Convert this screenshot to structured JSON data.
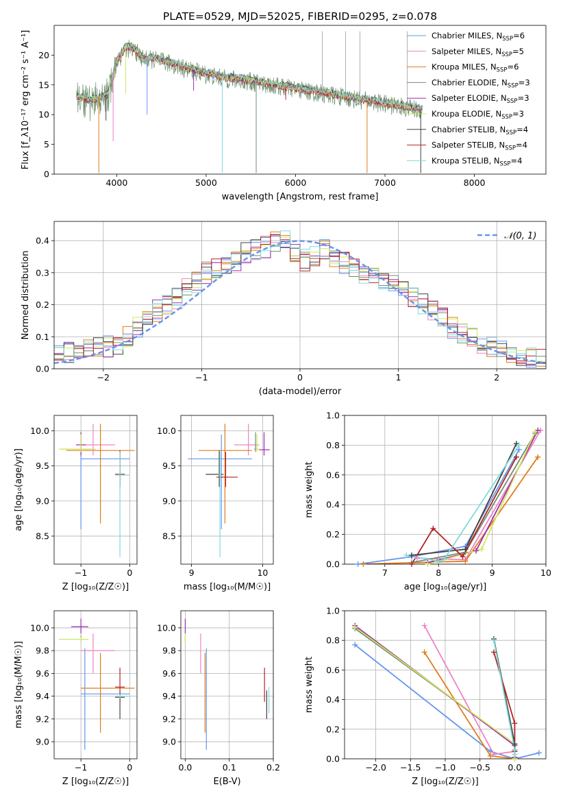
{
  "figure_title": "PLATE=0529, MJD=52025, FIBERID=0295, z=0.078",
  "colors": {
    "Chabrier MILES": "#6495ed",
    "Salpeter MILES": "#ee82c4",
    "Kroupa MILES": "#e07b1a",
    "Chabrier ELODIE": "#6f8f6f",
    "Salpeter ELODIE": "#9b2fae",
    "Kroupa ELODIE": "#d2e85a",
    "Chabrier STELIB": "#404040",
    "Salpeter STELIB": "#b22222",
    "Kroupa STELIB": "#7fdadc"
  },
  "chart_data": [
    {
      "type": "line",
      "xlabel": "wavelength [Angstrom, rest frame]",
      "ylabel": "Flux [f_λ10⁻¹⁷ erg cm⁻² s⁻¹ A⁻¹]",
      "xlim": [
        3300,
        8800
      ],
      "ylim": [
        0,
        25
      ],
      "xticks": [
        4000,
        5000,
        6000,
        7000,
        8000
      ],
      "yticks": [
        0,
        5,
        10,
        15,
        20
      ],
      "legend_position": "top-right",
      "legend": [
        {
          "name": "Chabrier MILES",
          "nssp": "6"
        },
        {
          "name": "Salpeter MILES",
          "nssp": "5"
        },
        {
          "name": "Kroupa MILES",
          "nssp": "6"
        },
        {
          "name": "Chabrier ELODIE",
          "nssp": "3"
        },
        {
          "name": "Salpeter ELODIE",
          "nssp": "3"
        },
        {
          "name": "Kroupa ELODIE",
          "nssp": "3"
        },
        {
          "name": "Chabrier STELIB",
          "nssp": "4"
        },
        {
          "name": "Salpeter STELIB",
          "nssp": "4"
        },
        {
          "name": "Kroupa STELIB",
          "nssp": "4"
        }
      ],
      "continuum": {
        "x": [
          3550,
          3700,
          3800,
          3900,
          4000,
          4100,
          4200,
          4300,
          4400,
          4600,
          4800,
          5000,
          5200,
          5400,
          5600,
          5800,
          6000,
          6200,
          6400,
          6600,
          6800,
          7000,
          7200,
          7400
        ],
        "y": [
          13.0,
          12.5,
          12.8,
          13.5,
          19.0,
          21.5,
          21.0,
          19.5,
          19.5,
          18.8,
          17.8,
          17.0,
          16.3,
          16.0,
          15.5,
          15.0,
          14.5,
          14.0,
          13.5,
          13.0,
          12.5,
          12.0,
          11.5,
          11.0
        ]
      },
      "dips": [
        {
          "x": 3800,
          "y": 0.2
        },
        {
          "x": 3880,
          "y": 9.0
        },
        {
          "x": 3960,
          "y": 5.5
        },
        {
          "x": 4100,
          "y": 13.5
        },
        {
          "x": 4340,
          "y": 10.0
        },
        {
          "x": 4860,
          "y": 14.0
        },
        {
          "x": 5180,
          "y": 0.2
        },
        {
          "x": 5560,
          "y": 0.2
        },
        {
          "x": 5890,
          "y": 12.5
        },
        {
          "x": 6800,
          "y": 0.2
        },
        {
          "x": 7400,
          "y": 0.2
        }
      ],
      "spikes": [
        {
          "x": 6300,
          "y": 24.0
        },
        {
          "x": 6560,
          "y": 24.0
        },
        {
          "x": 6720,
          "y": 24.0
        },
        {
          "x": 7250,
          "y": 24.0
        }
      ]
    },
    {
      "type": "line",
      "xlabel": "(data-model)/error",
      "ylabel": "Normed distribution",
      "xlim": [
        -2.5,
        2.5
      ],
      "ylim": [
        0,
        0.46
      ],
      "xticks": [
        -2,
        -1,
        0,
        1,
        2
      ],
      "yticks": [
        0.0,
        0.1,
        0.2,
        0.3,
        0.4
      ],
      "grid": true,
      "legend_position": "top-right",
      "gaussian_label": "𝒩(0, 1)",
      "histogram_bin_edges": [
        -2.5,
        -2.4,
        -2.3,
        -2.2,
        -2.1,
        -2.0,
        -1.9,
        -1.8,
        -1.7,
        -1.6,
        -1.5,
        -1.4,
        -1.3,
        -1.2,
        -1.1,
        -1.0,
        -0.9,
        -0.8,
        -0.7,
        -0.6,
        -0.5,
        -0.4,
        -0.3,
        -0.2,
        -0.1,
        0.0,
        0.1,
        0.2,
        0.3,
        0.4,
        0.5,
        0.6,
        0.7,
        0.8,
        0.9,
        1.0,
        1.1,
        1.2,
        1.3,
        1.4,
        1.5,
        1.6,
        1.7,
        1.8,
        1.9,
        2.0,
        2.1,
        2.2,
        2.3,
        2.4,
        2.5
      ],
      "histogram_base": [
        0.04,
        0.05,
        0.06,
        0.07,
        0.07,
        0.07,
        0.08,
        0.1,
        0.13,
        0.15,
        0.18,
        0.2,
        0.22,
        0.25,
        0.27,
        0.3,
        0.31,
        0.33,
        0.34,
        0.36,
        0.37,
        0.38,
        0.4,
        0.41,
        0.36,
        0.34,
        0.35,
        0.37,
        0.35,
        0.33,
        0.31,
        0.3,
        0.29,
        0.27,
        0.26,
        0.24,
        0.22,
        0.2,
        0.18,
        0.16,
        0.13,
        0.11,
        0.1,
        0.08,
        0.07,
        0.06,
        0.05,
        0.04,
        0.03,
        0.03
      ]
    },
    {
      "type": "scatter",
      "xlabel": "Z [log₁₀(Z/Z☉)]",
      "ylabel": "age  [log₁₀(age/yr)]",
      "xlim": [
        -1.55,
        0.15
      ],
      "ylim": [
        8.1,
        10.22
      ],
      "xticks": [
        -1,
        0
      ],
      "yticks": [
        8.5,
        9.0,
        9.5,
        10.0
      ],
      "grid": true,
      "points": [
        {
          "series": "Chabrier MILES",
          "x": -1.0,
          "y": 9.6,
          "ex": [
            -1.0,
            0.0
          ],
          "ey": [
            8.6,
            9.95
          ]
        },
        {
          "series": "Salpeter MILES",
          "x": -0.75,
          "y": 9.8,
          "ex": [
            -1.0,
            -0.3
          ],
          "ey": [
            9.65,
            10.1
          ]
        },
        {
          "series": "Kroupa MILES",
          "x": -0.6,
          "y": 9.72,
          "ex": [
            -1.3,
            0.1
          ],
          "ey": [
            8.68,
            10.1
          ]
        },
        {
          "series": "Chabrier ELODIE",
          "x": -1.0,
          "y": 9.74,
          "ex": [
            -1.4,
            -0.7
          ],
          "ey": [
            9.7,
            9.98
          ]
        },
        {
          "series": "Salpeter ELODIE",
          "x": -1.0,
          "y": 9.8,
          "ex": [
            -1.1,
            -0.9
          ],
          "ey": [
            9.65,
            9.98
          ]
        },
        {
          "series": "Kroupa ELODIE",
          "x": -1.0,
          "y": 9.74,
          "ex": [
            -1.45,
            -0.7
          ],
          "ey": [
            9.7,
            9.95
          ]
        },
        {
          "series": "Chabrier STELIB",
          "x": -0.2,
          "y": 9.38,
          "ex": [
            -0.3,
            -0.1
          ],
          "ey": [
            9.2,
            9.72
          ]
        },
        {
          "series": "Salpeter STELIB",
          "x": -0.2,
          "y": 9.38,
          "ex": [
            -0.3,
            -0.1
          ],
          "ey": [
            9.2,
            9.7
          ]
        },
        {
          "series": "Kroupa STELIB",
          "x": -0.2,
          "y": 9.37,
          "ex": [
            -0.3,
            0.0
          ],
          "ey": [
            8.2,
            9.7
          ]
        }
      ]
    },
    {
      "type": "scatter",
      "xlabel": "mass [log₁₀(M/M☉)]",
      "ylabel": "",
      "xlim": [
        8.85,
        10.15
      ],
      "ylim": [
        8.1,
        10.22
      ],
      "xticks": [
        9,
        10
      ],
      "yticks": [
        8.5,
        9.0,
        9.5,
        10.0
      ],
      "grid": true,
      "points": [
        {
          "series": "Chabrier MILES",
          "x": 9.42,
          "y": 9.6,
          "ex": [
            8.95,
            9.85
          ],
          "ey": [
            8.6,
            9.95
          ]
        },
        {
          "series": "Salpeter MILES",
          "x": 9.8,
          "y": 9.8,
          "ex": [
            9.6,
            9.95
          ],
          "ey": [
            9.65,
            10.1
          ]
        },
        {
          "series": "Kroupa MILES",
          "x": 9.47,
          "y": 9.72,
          "ex": [
            9.1,
            9.85
          ],
          "ey": [
            8.68,
            10.1
          ]
        },
        {
          "series": "Chabrier ELODIE",
          "x": 9.9,
          "y": 9.74,
          "ex": [
            9.88,
            9.93
          ],
          "ey": [
            9.7,
            9.98
          ]
        },
        {
          "series": "Salpeter ELODIE",
          "x": 10.02,
          "y": 9.73,
          "ex": [
            9.95,
            10.1
          ],
          "ey": [
            9.65,
            9.98
          ]
        },
        {
          "series": "Kroupa ELODIE",
          "x": 9.92,
          "y": 9.74,
          "ex": [
            9.9,
            9.95
          ],
          "ey": [
            9.7,
            9.95
          ]
        },
        {
          "series": "Chabrier STELIB",
          "x": 9.39,
          "y": 9.38,
          "ex": [
            9.2,
            9.45
          ],
          "ey": [
            9.2,
            9.72
          ]
        },
        {
          "series": "Salpeter STELIB",
          "x": 9.48,
          "y": 9.34,
          "ex": [
            9.35,
            9.65
          ],
          "ey": [
            9.2,
            9.7
          ]
        },
        {
          "series": "Kroupa STELIB",
          "x": 9.4,
          "y": 9.38,
          "ex": [
            9.38,
            9.42
          ],
          "ey": [
            8.2,
            9.7
          ]
        }
      ]
    },
    {
      "type": "line",
      "xlabel": "age  [log₁₀(age/yr)]",
      "ylabel": "mass weight",
      "xlim": [
        6.25,
        10.0
      ],
      "ylim": [
        0,
        1.0
      ],
      "xticks": [
        7,
        8,
        9,
        10
      ],
      "yticks": [
        0.0,
        0.2,
        0.4,
        0.6,
        0.8,
        1.0
      ],
      "grid": true,
      "series": [
        {
          "name": "Chabrier MILES",
          "x": [
            6.5,
            7.5,
            8.5,
            9.5
          ],
          "y": [
            0.0,
            0.05,
            0.12,
            0.77
          ]
        },
        {
          "name": "Salpeter MILES",
          "x": [
            7.6,
            8.5,
            9.9
          ],
          "y": [
            0.04,
            0.03,
            0.9
          ]
        },
        {
          "name": "Kroupa MILES",
          "x": [
            6.6,
            8.5,
            9.85
          ],
          "y": [
            0.0,
            0.02,
            0.72
          ]
        },
        {
          "name": "Chabrier ELODIE",
          "x": [
            7.5,
            8.5,
            9.8
          ],
          "y": [
            0.01,
            0.08,
            0.88
          ]
        },
        {
          "name": "Salpeter ELODIE",
          "x": [
            7.8,
            8.7,
            9.85
          ],
          "y": [
            0.01,
            0.09,
            0.9
          ]
        },
        {
          "name": "Kroupa ELODIE",
          "x": [
            7.8,
            8.8,
            9.8
          ],
          "y": [
            0.0,
            0.1,
            0.89
          ]
        },
        {
          "name": "Chabrier STELIB",
          "x": [
            7.5,
            8.5,
            9.45
          ],
          "y": [
            0.06,
            0.1,
            0.81
          ]
        },
        {
          "name": "Salpeter STELIB",
          "x": [
            7.5,
            7.9,
            8.45,
            9.45
          ],
          "y": [
            0.0,
            0.24,
            0.05,
            0.72
          ]
        },
        {
          "name": "Kroupa STELIB",
          "x": [
            7.4,
            8.0,
            8.1,
            9.5
          ],
          "y": [
            0.06,
            0.02,
            0.03,
            0.8
          ]
        }
      ]
    },
    {
      "type": "scatter",
      "xlabel": "Z [log₁₀(Z/Z☉)]",
      "ylabel": "mass [log₁₀(M/M☉)]",
      "xlim": [
        -1.55,
        0.15
      ],
      "ylim": [
        8.85,
        10.15
      ],
      "xticks": [
        -1,
        0
      ],
      "yticks": [
        9.0,
        9.2,
        9.4,
        9.6,
        9.8,
        10.0
      ],
      "grid": true,
      "points": [
        {
          "series": "Chabrier MILES",
          "x": -0.92,
          "y": 9.42,
          "ex": [
            -1.0,
            0.0
          ],
          "ey": [
            8.93,
            9.82
          ]
        },
        {
          "series": "Salpeter MILES",
          "x": -0.75,
          "y": 9.8,
          "ex": [
            -1.0,
            -0.3
          ],
          "ey": [
            9.6,
            9.95
          ]
        },
        {
          "series": "Kroupa MILES",
          "x": -0.6,
          "y": 9.47,
          "ex": [
            -1.0,
            0.1
          ],
          "ey": [
            9.08,
            9.78
          ]
        },
        {
          "series": "Chabrier ELODIE",
          "x": -1.0,
          "y": 9.9,
          "ex": [
            -1.45,
            -0.85
          ],
          "ey": [
            9.88,
            9.93
          ]
        },
        {
          "series": "Salpeter ELODIE",
          "x": -1.0,
          "y": 10.01,
          "ex": [
            -1.2,
            -0.85
          ],
          "ey": [
            9.95,
            10.08
          ]
        },
        {
          "series": "Kroupa ELODIE",
          "x": -1.0,
          "y": 9.9,
          "ex": [
            -1.45,
            -0.85
          ],
          "ey": [
            9.88,
            9.92
          ]
        },
        {
          "series": "Chabrier STELIB",
          "x": -0.2,
          "y": 9.39,
          "ex": [
            -0.3,
            -0.1
          ],
          "ey": [
            9.2,
            9.45
          ]
        },
        {
          "series": "Salpeter STELIB",
          "x": -0.2,
          "y": 9.48,
          "ex": [
            -0.3,
            -0.1
          ],
          "ey": [
            9.35,
            9.65
          ]
        },
        {
          "series": "Kroupa STELIB",
          "x": -0.2,
          "y": 9.4,
          "ex": [
            -0.3,
            0.0
          ],
          "ey": [
            9.38,
            9.42
          ]
        }
      ]
    },
    {
      "type": "scatter",
      "xlabel": "E(B-V)",
      "ylabel": "",
      "xlim": [
        -0.01,
        0.2
      ],
      "ylim": [
        8.85,
        10.15
      ],
      "xticks": [
        0.0,
        0.1,
        0.2
      ],
      "yticks": [
        9.0,
        9.2,
        9.4,
        9.6,
        9.8,
        10.0
      ],
      "grid": true,
      "points": [
        {
          "series": "Chabrier MILES",
          "x": 0.048,
          "y": 9.42,
          "ey": [
            8.93,
            9.82
          ]
        },
        {
          "series": "Salpeter MILES",
          "x": 0.035,
          "y": 9.8,
          "ey": [
            9.6,
            9.95
          ]
        },
        {
          "series": "Kroupa MILES",
          "x": 0.045,
          "y": 9.47,
          "ey": [
            9.08,
            9.78
          ]
        },
        {
          "series": "Chabrier ELODIE",
          "x": 0.0,
          "y": 9.9,
          "ey": [
            9.88,
            9.93
          ]
        },
        {
          "series": "Salpeter ELODIE",
          "x": 0.0,
          "y": 10.01,
          "ey": [
            9.95,
            10.08
          ]
        },
        {
          "series": "Kroupa ELODIE",
          "x": 0.0,
          "y": 9.9,
          "ey": [
            9.85,
            9.95
          ]
        },
        {
          "series": "Chabrier STELIB",
          "x": 0.185,
          "y": 9.39,
          "ey": [
            9.2,
            9.45
          ]
        },
        {
          "series": "Salpeter STELIB",
          "x": 0.18,
          "y": 9.48,
          "ey": [
            9.35,
            9.65
          ]
        },
        {
          "series": "Kroupa STELIB",
          "x": 0.19,
          "y": 9.4,
          "ey": [
            9.25,
            9.48
          ]
        }
      ]
    },
    {
      "type": "line",
      "xlabel": "Z [log₁₀(Z/Z☉)]",
      "ylabel": "mass weight",
      "xlim": [
        -2.45,
        0.45
      ],
      "ylim": [
        0,
        1.0
      ],
      "xticks": [
        -2.0,
        -1.5,
        -1.0,
        -0.5,
        0.0
      ],
      "yticks": [
        0.0,
        0.2,
        0.4,
        0.6,
        0.8,
        1.0
      ],
      "grid": true,
      "series": [
        {
          "name": "Chabrier MILES",
          "x": [
            -2.3,
            -0.35,
            0.0,
            0.35
          ],
          "y": [
            0.77,
            0.05,
            0.0,
            0.04
          ]
        },
        {
          "name": "Salpeter MILES",
          "x": [
            -1.3,
            -0.3,
            0.0
          ],
          "y": [
            0.9,
            0.03,
            0.05
          ]
        },
        {
          "name": "Kroupa MILES",
          "x": [
            -1.3,
            -0.35,
            0.0
          ],
          "y": [
            0.72,
            0.02,
            0.0
          ]
        },
        {
          "name": "Chabrier ELODIE",
          "x": [
            -2.3,
            0.0,
            0.0
          ],
          "y": [
            0.88,
            0.1,
            0.01
          ]
        },
        {
          "name": "Salpeter ELODIE",
          "x": [
            -2.3,
            0.0,
            0.0
          ],
          "y": [
            0.9,
            0.09,
            0.01
          ]
        },
        {
          "name": "Kroupa ELODIE",
          "x": [
            -2.3,
            0.0,
            0.0
          ],
          "y": [
            0.89,
            0.1,
            0.0
          ]
        },
        {
          "name": "Chabrier STELIB",
          "x": [
            -0.3,
            0.0,
            0.0
          ],
          "y": [
            0.81,
            0.1,
            0.06
          ]
        },
        {
          "name": "Salpeter STELIB",
          "x": [
            -0.3,
            0.0,
            0.0
          ],
          "y": [
            0.72,
            0.24,
            0.05
          ]
        },
        {
          "name": "Kroupa STELIB",
          "x": [
            -0.3,
            0.0,
            0.0
          ],
          "y": [
            0.8,
            0.06,
            0.03
          ]
        }
      ]
    }
  ]
}
